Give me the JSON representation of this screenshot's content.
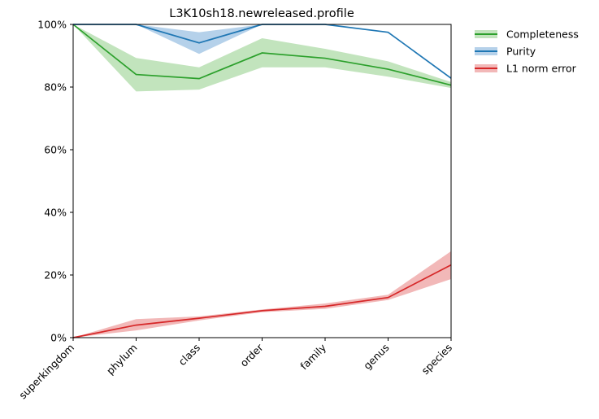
{
  "chart_data": {
    "type": "line",
    "title": "L3K10sh18.newreleased.profile",
    "xlabel": "",
    "ylabel": "",
    "categories": [
      "superkingdom",
      "phylum",
      "class",
      "order",
      "family",
      "genus",
      "species"
    ],
    "ylim": [
      0,
      100
    ],
    "yticks": [
      0,
      20,
      40,
      60,
      80,
      100
    ],
    "ytick_labels": [
      "0%",
      "20%",
      "40%",
      "60%",
      "80%",
      "100%"
    ],
    "grid": false,
    "legend_position": "outside-top-right",
    "series": [
      {
        "name": "Completeness",
        "color": "#2ca02c",
        "band_color": "#c2e4bd",
        "values": [
          100,
          84.0,
          82.7,
          90.9,
          89.2,
          85.7,
          80.6
        ],
        "lower": [
          100,
          78.6,
          79.2,
          86.3,
          86.3,
          83.3,
          79.7
        ],
        "upper": [
          100,
          89.3,
          86.3,
          95.6,
          92.2,
          88.2,
          81.6
        ]
      },
      {
        "name": "Purity",
        "color": "#1f77b4",
        "band_color": "#b5d1ea",
        "values": [
          100,
          100,
          94.1,
          100,
          100,
          97.5,
          82.8
        ],
        "lower": [
          100,
          100,
          90.6,
          100,
          100,
          97.5,
          82.8
        ],
        "upper": [
          100,
          100,
          97.5,
          100,
          100,
          97.5,
          82.8
        ]
      },
      {
        "name": "L1 norm error",
        "color": "#d62728",
        "band_color": "#f2b8b8",
        "values": [
          0,
          4.0,
          6.2,
          8.6,
          10.0,
          12.8,
          23.2
        ],
        "lower": [
          0,
          2.3,
          5.5,
          8.1,
          9.2,
          12.0,
          18.7
        ],
        "upper": [
          0,
          5.9,
          6.8,
          9.0,
          10.9,
          13.7,
          27.6
        ]
      }
    ]
  }
}
